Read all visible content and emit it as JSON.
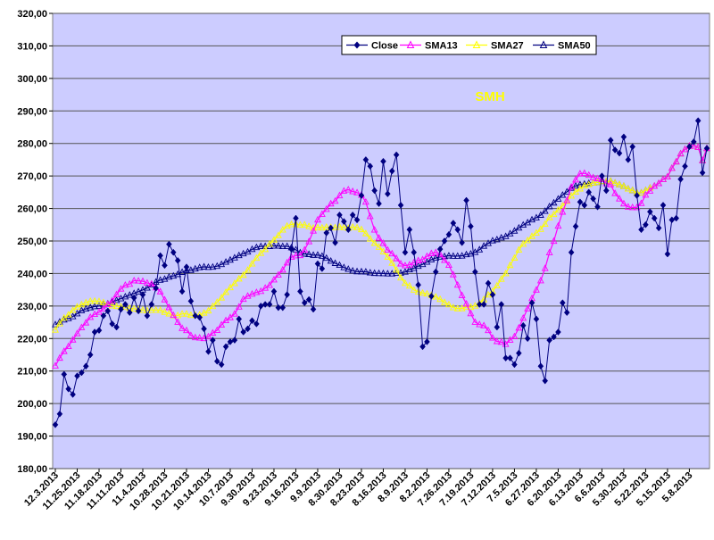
{
  "chart_data": {
    "type": "line",
    "title": "SMH",
    "xlabel": "",
    "ylabel": "",
    "ylim": [
      180,
      320
    ],
    "y_ticks": [
      "180,00",
      "190,00",
      "200,00",
      "210,00",
      "220,00",
      "230,00",
      "240,00",
      "250,00",
      "260,00",
      "270,00",
      "280,00",
      "290,00",
      "300,00",
      "310,00",
      "320,00"
    ],
    "x_order": "reversed (most recent date on the right)",
    "grid": true,
    "legend_position": "top-right",
    "x_tick_labels": [
      "12.3.2013",
      "11.25.2013",
      "11.18.2013",
      "11.11.2013",
      "11.4.2013",
      "10.28.2013",
      "10.21.2013",
      "10.14.2013",
      "10.7.2013",
      "9.30.2013",
      "9.23.2013",
      "9.16.2013",
      "9.9.2013",
      "8.30.2013",
      "8.23.2013",
      "8.16.2013",
      "8.9.2013",
      "8.2.2013",
      "7.26.2013",
      "7.19.2013",
      "7.12.2013",
      "7.5.2013",
      "6.27.2013",
      "6.20.2013",
      "6.13.2013",
      "6.6.2013",
      "5.30.2013",
      "5.22.2013",
      "5.15.2013",
      "5.8.2013"
    ],
    "series": [
      {
        "name": "Close",
        "color": "#000080",
        "marker": "diamond",
        "values": [
          193.5,
          196.8,
          209,
          204.5,
          202.8,
          208.5,
          209.5,
          211.5,
          215,
          222,
          222.5,
          227,
          228.5,
          224.5,
          223.5,
          229,
          230.5,
          228,
          232.5,
          228.5,
          233.5,
          227,
          230.5,
          235.5,
          245.5,
          242.5,
          249,
          246.5,
          244,
          234.5,
          242,
          231.5,
          227,
          226.5,
          223,
          216,
          219.5,
          213,
          212,
          217.5,
          219,
          219.5,
          226,
          222,
          223,
          225.5,
          224.5,
          230,
          230.5,
          230.5,
          234.5,
          229.5,
          229.5,
          233.5,
          247.5,
          257,
          234.5,
          231,
          232,
          229,
          243,
          241.5,
          252.5,
          254,
          249.5,
          258,
          256,
          253.5,
          258,
          256.5,
          264,
          275,
          273,
          265.5,
          261.5,
          274.5,
          264.5,
          271.5,
          276.5,
          261,
          246.5,
          253.5,
          246.5,
          236.5,
          217.5,
          219,
          233,
          240.5,
          247.5,
          250,
          252,
          255.5,
          253.5,
          249.5,
          262.5,
          254.5,
          240.5,
          230.5,
          230.5,
          237,
          233.5,
          223.5,
          230.5,
          214,
          214,
          212,
          215.5,
          224,
          220,
          231,
          226,
          211.5,
          207,
          219.5,
          220.5,
          222,
          231,
          228,
          246.5,
          254.5,
          262,
          261,
          265,
          263,
          260.5,
          270,
          265.5,
          281,
          278,
          277,
          282,
          275,
          279,
          264,
          253.5,
          255,
          259,
          257,
          254,
          261,
          246,
          256.5,
          257,
          269,
          273,
          279,
          280.5,
          287,
          271,
          278.5
        ]
      },
      {
        "name": "SMA13",
        "color": "#ff00ff",
        "marker": "triangle"
      },
      {
        "name": "SMA27",
        "color": "#ffff00",
        "marker": "triangle"
      },
      {
        "name": "SMA50",
        "color": "#000080",
        "marker": "triangle"
      }
    ]
  }
}
